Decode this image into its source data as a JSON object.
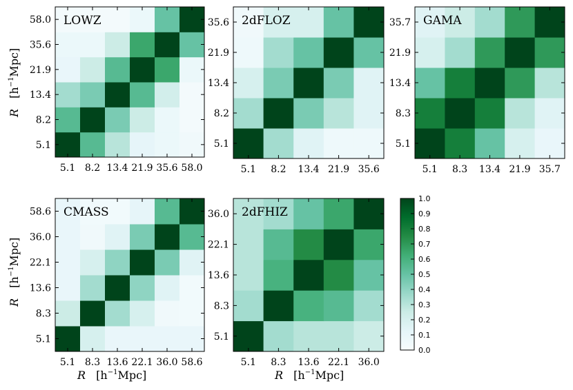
{
  "chart_data": [
    {
      "type": "heatmap",
      "title": "LOWZ",
      "ticks": [
        "5.1",
        "8.2",
        "13.4",
        "21.9",
        "35.6",
        "58.0"
      ],
      "matrix": [
        [
          1.0,
          0.55,
          0.3,
          0.12,
          0.08,
          0.05
        ],
        [
          0.55,
          1.0,
          0.45,
          0.25,
          0.08,
          0.03
        ],
        [
          0.35,
          0.45,
          1.0,
          0.55,
          0.22,
          0.03
        ],
        [
          0.1,
          0.25,
          0.55,
          1.0,
          0.65,
          0.08
        ],
        [
          0.08,
          0.08,
          0.25,
          0.65,
          1.0,
          0.5
        ],
        [
          0.03,
          0.03,
          0.03,
          0.08,
          0.5,
          1.0
        ]
      ]
    },
    {
      "type": "heatmap",
      "title": "2dFLOZ",
      "ticks": [
        "5.1",
        "8.2",
        "13.4",
        "21.9",
        "35.6"
      ],
      "matrix": [
        [
          1.0,
          0.35,
          0.15,
          0.06,
          0.06
        ],
        [
          0.35,
          1.0,
          0.45,
          0.3,
          0.15
        ],
        [
          0.2,
          0.45,
          1.0,
          0.45,
          0.15
        ],
        [
          0.06,
          0.35,
          0.5,
          1.0,
          0.5
        ],
        [
          0.05,
          0.2,
          0.2,
          0.5,
          1.0
        ]
      ]
    },
    {
      "type": "heatmap",
      "title": "GAMA",
      "ticks": [
        "5.1",
        "8.3",
        "13.4",
        "21.9",
        "35.7"
      ],
      "matrix": [
        [
          1.0,
          0.8,
          0.5,
          0.2,
          0.1
        ],
        [
          0.8,
          1.0,
          0.8,
          0.3,
          0.15
        ],
        [
          0.5,
          0.8,
          1.0,
          0.7,
          0.3
        ],
        [
          0.2,
          0.35,
          0.7,
          1.0,
          0.7
        ],
        [
          0.15,
          0.25,
          0.35,
          0.7,
          1.0
        ]
      ]
    },
    {
      "type": "heatmap",
      "title": "CMASS",
      "ticks": [
        "5.1",
        "8.3",
        "13.6",
        "22.1",
        "36.0",
        "58.6"
      ],
      "matrix": [
        [
          1.0,
          0.2,
          0.1,
          0.1,
          0.1,
          0.1
        ],
        [
          0.25,
          1.0,
          0.35,
          0.2,
          0.05,
          0.04
        ],
        [
          0.1,
          0.35,
          1.0,
          0.4,
          0.15,
          0.04
        ],
        [
          0.1,
          0.2,
          0.4,
          1.0,
          0.45,
          0.15
        ],
        [
          0.1,
          0.05,
          0.15,
          0.45,
          1.0,
          0.55
        ],
        [
          0.1,
          0.04,
          0.04,
          0.12,
          0.55,
          1.0
        ]
      ]
    },
    {
      "type": "heatmap",
      "title": "2dFHIZ",
      "ticks": [
        "5.1",
        "8.3",
        "13.6",
        "22.1",
        "36.0"
      ],
      "matrix": [
        [
          1.0,
          0.35,
          0.3,
          0.3,
          0.25
        ],
        [
          0.35,
          1.0,
          0.6,
          0.55,
          0.35
        ],
        [
          0.3,
          0.6,
          1.0,
          0.75,
          0.5
        ],
        [
          0.3,
          0.55,
          0.75,
          1.0,
          0.65
        ],
        [
          0.3,
          0.35,
          0.5,
          0.65,
          1.0
        ]
      ]
    }
  ],
  "axes": {
    "xlabel_var": "R",
    "xlabel_unit": "[h",
    "xlabel_sup": "−1",
    "xlabel_tail": "Mpc]",
    "ylabel_var": "R",
    "ylabel_unit": "[h",
    "ylabel_sup": "−1",
    "ylabel_tail": "Mpc]"
  },
  "colorbar": {
    "range": [
      0.0,
      1.0
    ],
    "ticks": [
      "0.0",
      "0.1",
      "0.2",
      "0.3",
      "0.4",
      "0.5",
      "0.6",
      "0.7",
      "0.8",
      "0.9",
      "1.0"
    ],
    "colormap": "BuGn",
    "colors": [
      "#f7fcfd",
      "#e5f5f9",
      "#ccece6",
      "#99d8c9",
      "#66c2a4",
      "#41ae76",
      "#238b45",
      "#006d2c",
      "#00441b"
    ]
  }
}
